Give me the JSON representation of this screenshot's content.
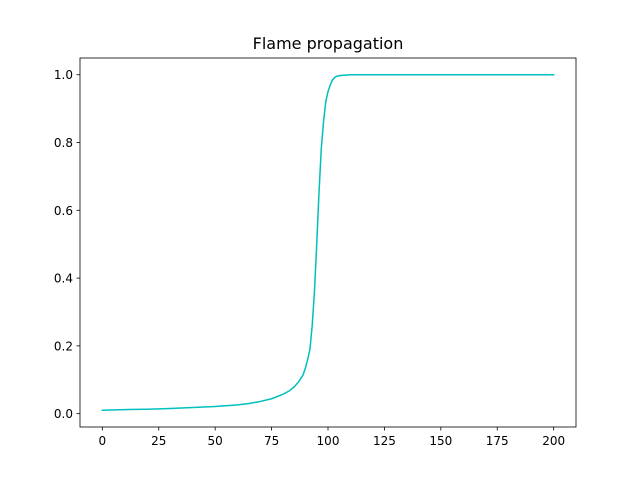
{
  "chart_data": {
    "type": "line",
    "title": "Flame propagation",
    "xlabel": "",
    "ylabel": "",
    "xlim": [
      -9.9,
      209.9
    ],
    "ylim": [
      -0.0394,
      1.0494
    ],
    "xticks": [
      0,
      25,
      50,
      75,
      100,
      125,
      150,
      175,
      200
    ],
    "yticks": [
      0.0,
      0.2,
      0.4,
      0.6,
      0.8,
      1.0
    ],
    "ytick_labels": [
      "0.0",
      "0.2",
      "0.4",
      "0.6",
      "0.8",
      "1.0"
    ],
    "grid": false,
    "legend": "none",
    "series": [
      {
        "color": "#00bfbf",
        "x": [
          0,
          10,
          20,
          30,
          40,
          50,
          60,
          65,
          70,
          75,
          80,
          83,
          85,
          87,
          89,
          90,
          91,
          92,
          93,
          94,
          95,
          96,
          97,
          98,
          99,
          100,
          101,
          102,
          103,
          104,
          106,
          108,
          110,
          120,
          130,
          140,
          150,
          160,
          170,
          180,
          190,
          200
        ],
        "y": [
          0.01,
          0.012,
          0.013,
          0.015,
          0.018,
          0.021,
          0.026,
          0.03,
          0.036,
          0.044,
          0.057,
          0.068,
          0.079,
          0.094,
          0.115,
          0.135,
          0.16,
          0.19,
          0.26,
          0.36,
          0.5,
          0.65,
          0.78,
          0.86,
          0.92,
          0.95,
          0.97,
          0.985,
          0.992,
          0.996,
          0.998,
          0.999,
          1.0,
          1.0,
          1.0,
          1.0,
          1.0,
          1.0,
          1.0,
          1.0,
          1.0,
          1.0
        ]
      }
    ]
  }
}
